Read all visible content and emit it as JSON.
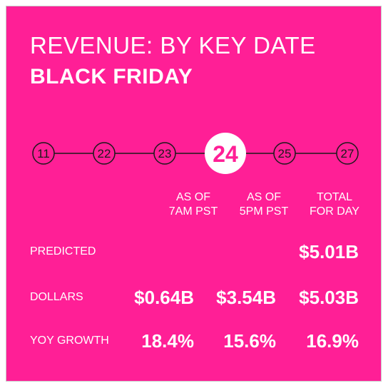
{
  "header": {
    "title": "REVENUE: BY KEY DATE",
    "subtitle": "BLACK FRIDAY"
  },
  "timeline": {
    "dates": [
      "11",
      "22",
      "23",
      "24",
      "25",
      "27"
    ],
    "highlighted": "24"
  },
  "table": {
    "columns": [
      "AS OF\n7AM PST",
      "AS OF\n5PM PST",
      "TOTAL\nFOR DAY"
    ],
    "rows": [
      {
        "label": "PREDICTED",
        "values": [
          "",
          "",
          "$5.01B"
        ]
      },
      {
        "label": "DOLLARS",
        "values": [
          "$0.64B",
          "$3.54B",
          "$5.03B"
        ]
      },
      {
        "label": "YOY GROWTH",
        "values": [
          "18.4%",
          "15.6%",
          "16.9%"
        ]
      }
    ]
  },
  "colors": {
    "background": "#ff1f96",
    "text": "#ffffff",
    "highlight_circle": "#ffffff"
  }
}
